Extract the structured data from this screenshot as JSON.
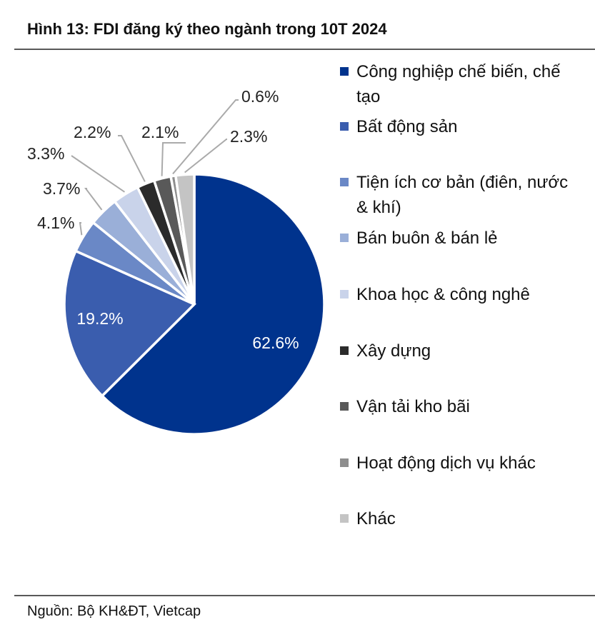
{
  "chart_data": {
    "type": "pie",
    "title": "Hình 13:  FDI đăng ký theo ngành trong 10T 2024",
    "source": "Nguồn: Bộ KH&ĐT, Vietcap",
    "legend_position": "right",
    "start_angle": "top, clockwise",
    "slices": [
      {
        "name": "Công nghiệp chế biến, chế tạo",
        "legend_lines": [
          "Công nghiệp chế biến, chế",
          "tạo"
        ],
        "value": 62.6,
        "label": "62.6%",
        "color": "#00338D"
      },
      {
        "name": "Bất động sản",
        "legend_lines": [
          "Bất động sản"
        ],
        "value": 19.2,
        "label": "19.2%",
        "color": "#3A5DAE"
      },
      {
        "name": "Tiện ích cơ bản (điên, nước & khí)",
        "legend_lines": [
          "Tiện ích cơ bản (điên, nước",
          "& khí)"
        ],
        "value": 4.1,
        "label": "4.1%",
        "color": "#6A88C6"
      },
      {
        "name": "Bán buôn & bán lẻ",
        "legend_lines": [
          "Bán buôn & bán lẻ"
        ],
        "value": 3.7,
        "label": "3.7%",
        "color": "#9AAFD8"
      },
      {
        "name": "Khoa học & công nghê",
        "legend_lines": [
          "Khoa học & công nghê"
        ],
        "value": 3.3,
        "label": "3.3%",
        "color": "#C9D3EA"
      },
      {
        "name": "Xây dựng",
        "legend_lines": [
          "Xây dựng"
        ],
        "value": 2.2,
        "label": "2.2%",
        "color": "#2B2B2B"
      },
      {
        "name": "Vận tải kho bãi",
        "legend_lines": [
          "Vận tải kho bãi"
        ],
        "value": 2.1,
        "label": "2.1%",
        "color": "#595959"
      },
      {
        "name": "Hoạt động dịch vụ khác",
        "legend_lines": [
          "Hoạt động dịch vụ khác"
        ],
        "value": 0.6,
        "label": "0.6%",
        "color": "#8E8E8E"
      },
      {
        "name": "Khác",
        "legend_lines": [
          "Khác"
        ],
        "value": 2.3,
        "label": "2.3%",
        "color": "#C4C4C4"
      }
    ]
  }
}
